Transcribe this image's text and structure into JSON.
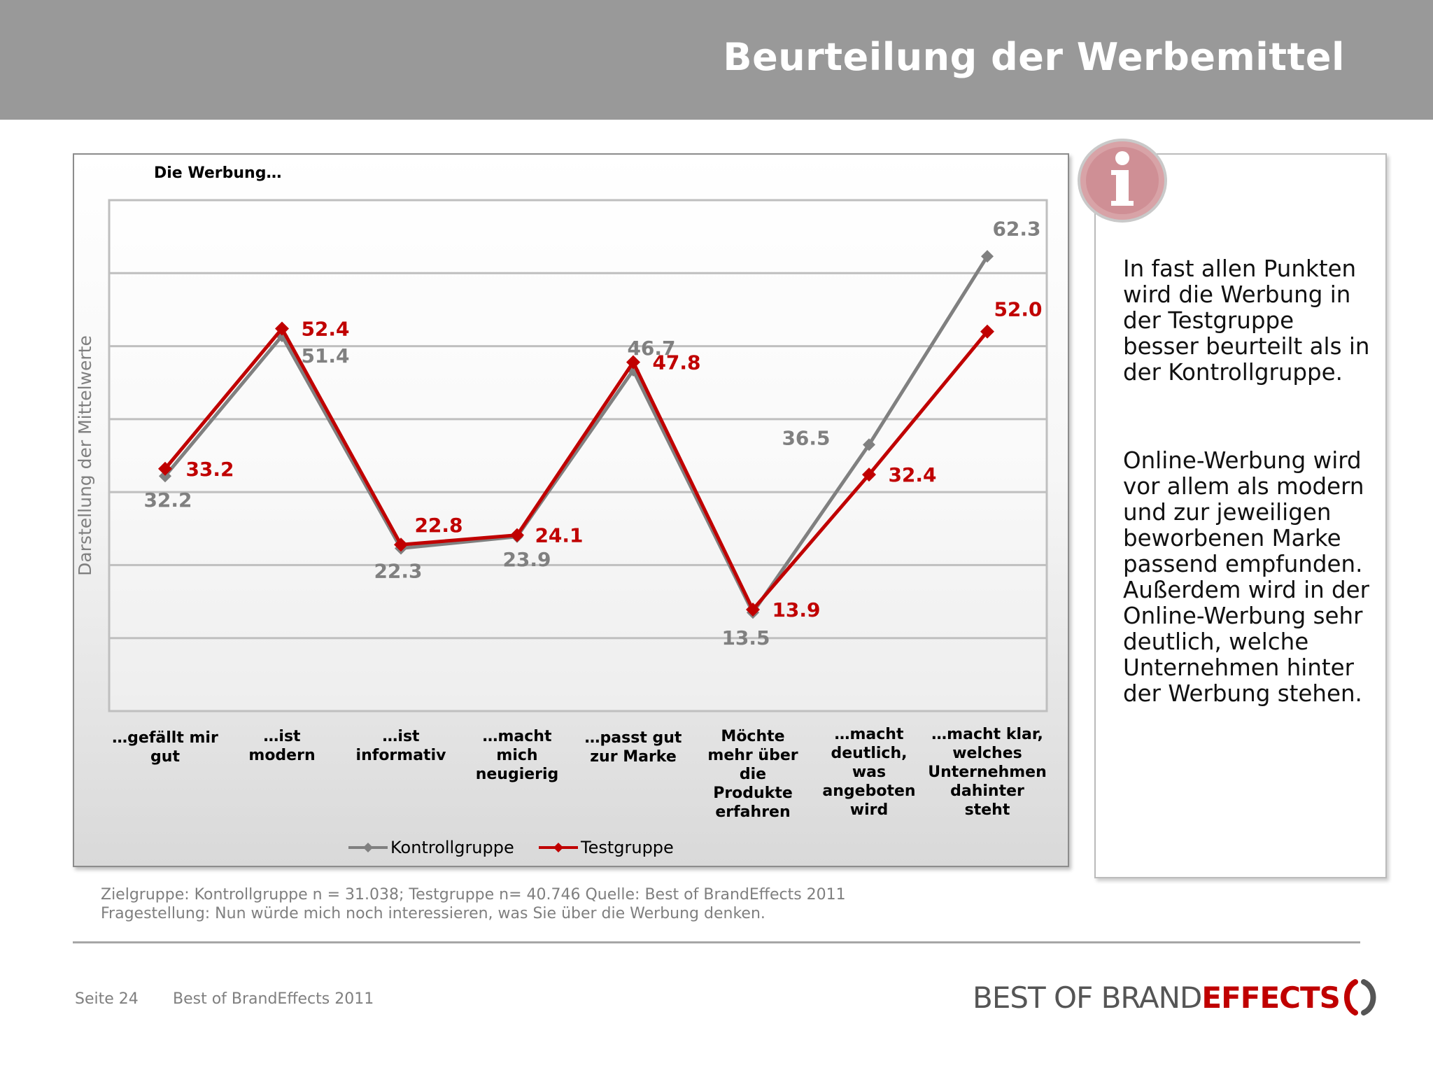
{
  "header": {
    "title": "Beurteilung der Werbemittel"
  },
  "chart_data": {
    "type": "line",
    "title": "Die Werbung…",
    "ylabel": "Darstellung der Mittelwerte",
    "xlabel": "",
    "ylim": [
      0,
      70
    ],
    "grid": true,
    "legend_position": "bottom",
    "categories": [
      "…gefällt mir gut",
      "…ist modern",
      "…ist informativ",
      "…macht mich neugierig",
      "…passt gut zur Marke",
      "Möchte mehr über die Produkte erfahren",
      "…macht deutlich, was angeboten wird",
      "…macht klar, welches Unternehmen dahinter steht"
    ],
    "series": [
      {
        "name": "Kontrollgruppe",
        "color": "#808080",
        "values": [
          32.2,
          51.4,
          22.3,
          23.9,
          46.7,
          13.5,
          36.5,
          62.3
        ],
        "labels": [
          "32.2",
          "51.4",
          "22.3",
          "23.9",
          "46.7",
          "13.5",
          "36.5",
          "62.3"
        ]
      },
      {
        "name": "Testgruppe",
        "color": "#c00000",
        "values": [
          33.2,
          52.4,
          22.8,
          24.1,
          47.8,
          13.9,
          32.4,
          52.0
        ],
        "labels": [
          "33.2",
          "52.4",
          "22.8",
          "24.1",
          "47.8",
          "13.9",
          "32.4",
          "52.0"
        ]
      }
    ]
  },
  "info": {
    "icon": "info-icon",
    "paragraph1": "In fast allen Punkten wird die Werbung in der Testgruppe besser beurteilt als in der Kontrollgruppe.",
    "paragraph2": "Online-Werbung wird vor allem als modern und zur jeweiligen beworbenen Marke passend empfunden. Außerdem wird in der Online-Werbung sehr deutlich, welche Unternehmen hinter der Werbung stehen."
  },
  "footnote": {
    "line1": "Zielgruppe: Kontrollgruppe n = 31.038; Testgruppe n= 40.746 Quelle: Best of BrandEffects 2011",
    "line2": "Fragestellung: Nun würde mich noch interessieren, was Sie über die Werbung denken."
  },
  "footer": {
    "page": "Seite 24",
    "source": "Best of BrandEffects 2011",
    "logo_part1": "BEST OF BRAND",
    "logo_part2": "EFFECTS",
    "logo_mark": "()"
  },
  "colors": {
    "header": "#999999",
    "accent": "#c00000",
    "control": "#808080"
  }
}
